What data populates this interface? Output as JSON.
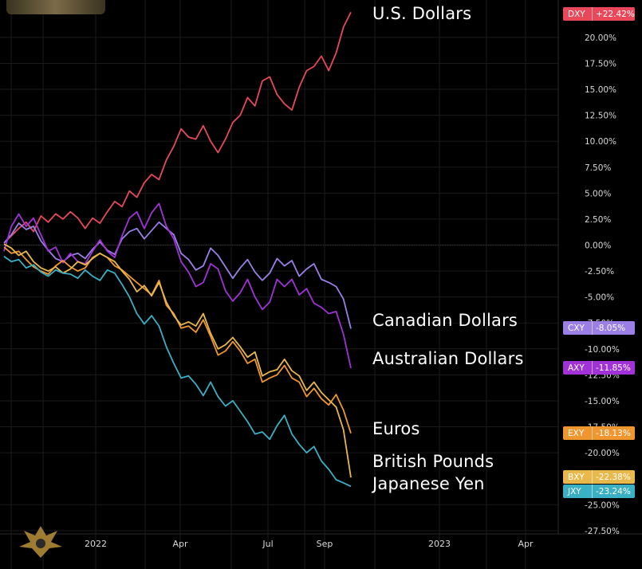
{
  "chart_data": {
    "type": "line",
    "x_ticks": [
      "2022",
      "Apr",
      "Jul",
      "Sep",
      "2023",
      "Apr"
    ],
    "y_ticks": [
      "20.00%",
      "17.50%",
      "15.00%",
      "12.50%",
      "10.00%",
      "7.50%",
      "5.00%",
      "2.50%",
      "0.00%",
      "-2.50%",
      "-5.00%",
      "-7.50%",
      "-10.00%",
      "-12.50%",
      "-15.00%",
      "-17.50%",
      "-20.00%",
      "-25.00%",
      "-27.50%"
    ],
    "ylim": [
      -29,
      23
    ],
    "grid": true,
    "series": [
      {
        "name": "U.S. Dollars",
        "code": "DXY",
        "final": "+22.42%",
        "color": "#e8485a",
        "values": [
          0.2,
          0.9,
          1.6,
          2.2,
          1.3,
          2.8,
          2.2,
          3.0,
          2.5,
          3.2,
          2.6,
          1.6,
          2.6,
          2.1,
          3.2,
          4.2,
          3.7,
          5.2,
          4.6,
          6.0,
          6.8,
          6.3,
          8.2,
          9.5,
          11.2,
          10.4,
          10.2,
          11.5,
          10.0,
          8.9,
          10.2,
          11.8,
          12.5,
          14.2,
          13.4,
          15.8,
          16.2,
          14.5,
          13.6,
          13.0,
          15.2,
          16.8,
          17.2,
          18.2,
          16.8,
          18.5,
          21.0,
          22.42
        ]
      },
      {
        "name": "Canadian Dollars",
        "code": "CXY",
        "final": "-8.05%",
        "color": "#9b7fe6",
        "values": [
          0.2,
          1.0,
          2.1,
          1.5,
          1.8,
          0.4,
          -0.5,
          -1.3,
          -1.6,
          -1.0,
          -0.8,
          -1.3,
          -0.4,
          0.3,
          -0.5,
          -0.9,
          0.6,
          1.3,
          1.6,
          0.6,
          1.4,
          2.2,
          1.6,
          1.0,
          -0.8,
          -1.4,
          -2.4,
          -2.0,
          -0.3,
          -1.0,
          -2.1,
          -3.2,
          -2.2,
          -1.4,
          -2.6,
          -3.4,
          -2.7,
          -1.3,
          -2.0,
          -1.5,
          -3.0,
          -2.3,
          -1.8,
          -3.3,
          -3.6,
          -4.0,
          -5.2,
          -8.05
        ]
      },
      {
        "name": "Australian Dollars",
        "code": "AXY",
        "final": "-11.85%",
        "color": "#a032d8",
        "values": [
          -0.6,
          1.8,
          3.0,
          1.8,
          2.6,
          1.0,
          -0.6,
          -0.2,
          -1.7,
          -0.8,
          -1.6,
          -1.8,
          -0.6,
          0.5,
          -0.6,
          -1.2,
          0.9,
          2.6,
          3.2,
          1.6,
          3.1,
          4.0,
          1.8,
          0.6,
          -1.6,
          -2.6,
          -4.0,
          -3.6,
          -1.8,
          -2.3,
          -4.4,
          -5.4,
          -4.6,
          -3.3,
          -5.0,
          -6.2,
          -5.5,
          -3.3,
          -4.0,
          -3.3,
          -4.8,
          -4.2,
          -5.6,
          -6.0,
          -6.6,
          -6.4,
          -8.6,
          -11.85
        ]
      },
      {
        "name": "Euros",
        "code": "EXY",
        "final": "-18.13%",
        "color": "#f0962e",
        "values": [
          -0.2,
          -0.8,
          -0.6,
          -1.4,
          -2.1,
          -2.5,
          -2.8,
          -2.0,
          -1.5,
          -2.1,
          -2.5,
          -2.2,
          -1.2,
          -0.8,
          -1.2,
          -2.0,
          -2.4,
          -3.0,
          -3.6,
          -4.2,
          -4.8,
          -3.4,
          -5.8,
          -6.6,
          -8.0,
          -7.8,
          -8.4,
          -7.2,
          -8.8,
          -10.6,
          -10.2,
          -9.3,
          -10.2,
          -11.4,
          -11.0,
          -13.2,
          -12.8,
          -12.5,
          -11.6,
          -12.8,
          -13.2,
          -14.6,
          -13.8,
          -14.8,
          -15.4,
          -14.4,
          -15.9,
          -18.13
        ]
      },
      {
        "name": "British Pounds",
        "code": "BXY",
        "final": "-22.38%",
        "color": "#e8b84a",
        "values": [
          0.1,
          -0.3,
          -1.0,
          -0.6,
          -1.6,
          -2.2,
          -2.5,
          -2.1,
          -2.7,
          -2.3,
          -1.6,
          -1.9,
          -1.3,
          -0.8,
          -1.2,
          -1.6,
          -2.5,
          -3.3,
          -4.5,
          -3.9,
          -4.9,
          -3.6,
          -5.5,
          -6.8,
          -7.7,
          -7.4,
          -7.8,
          -6.6,
          -8.5,
          -10.0,
          -9.6,
          -8.9,
          -9.8,
          -10.8,
          -10.3,
          -12.6,
          -12.2,
          -12.0,
          -11.0,
          -12.1,
          -12.6,
          -14.0,
          -13.2,
          -14.2,
          -14.9,
          -15.6,
          -17.8,
          -22.38
        ]
      },
      {
        "name": "Japanese Yen",
        "code": "JXY",
        "final": "-23.24%",
        "color": "#3ab0c4",
        "values": [
          -1.1,
          -1.6,
          -1.4,
          -2.2,
          -1.9,
          -2.6,
          -3.0,
          -2.4,
          -2.7,
          -2.8,
          -3.2,
          -2.4,
          -3.0,
          -3.4,
          -2.4,
          -2.7,
          -3.8,
          -5.0,
          -6.6,
          -7.6,
          -6.8,
          -7.8,
          -9.8,
          -11.4,
          -12.8,
          -12.6,
          -13.4,
          -14.5,
          -13.2,
          -14.6,
          -15.5,
          -15.0,
          -16.0,
          -17.0,
          -18.2,
          -18.0,
          -18.7,
          -17.4,
          -16.4,
          -18.2,
          -19.2,
          -20.0,
          -19.4,
          -20.8,
          -21.6,
          -22.6,
          -22.9,
          -23.24
        ]
      }
    ]
  }
}
